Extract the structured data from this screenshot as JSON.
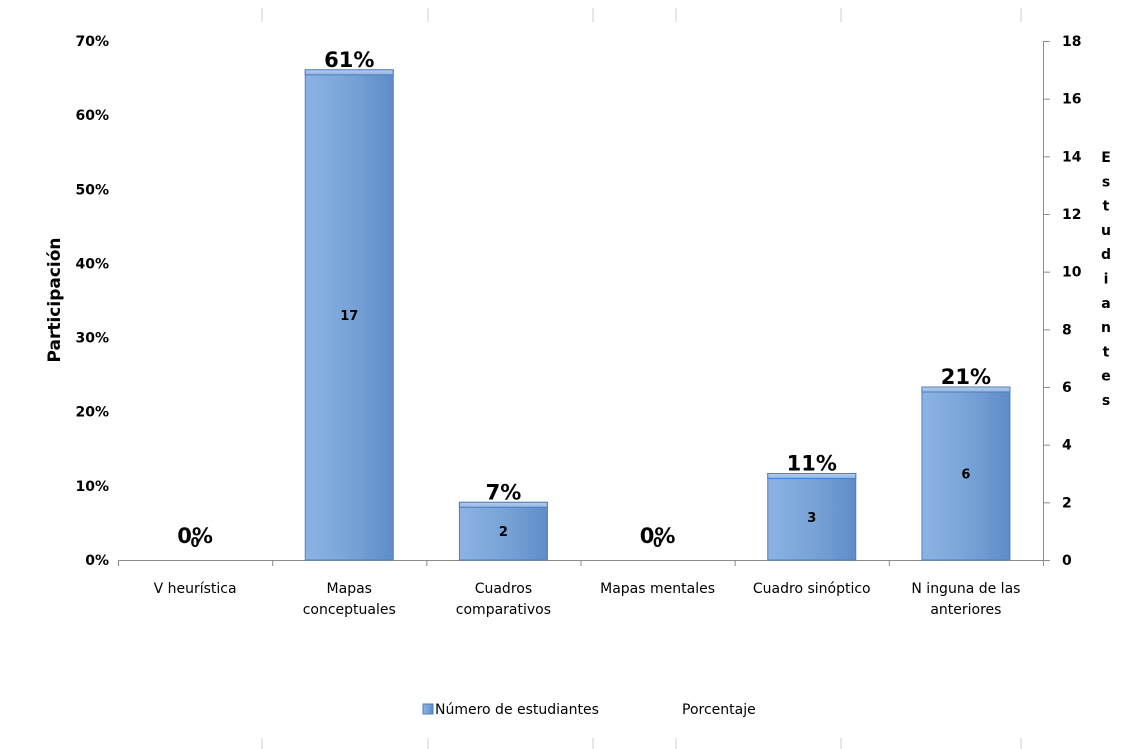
{
  "chart_data": {
    "type": "bar",
    "categories": [
      [
        "V heurística"
      ],
      [
        "Mapas",
        "conceptuales"
      ],
      [
        "Cuadros",
        "comparativos"
      ],
      [
        "Mapas mentales"
      ],
      [
        "Cuadro sinóptico"
      ],
      [
        "N inguna de las",
        "anteriores"
      ]
    ],
    "series": [
      {
        "name": "Número de estudiantes",
        "values": [
          0,
          17,
          2,
          0,
          3,
          6
        ],
        "axis": "right"
      },
      {
        "name": "Porcentaje",
        "values": [
          0,
          61,
          7,
          0,
          11,
          21
        ],
        "axis": "left"
      }
    ],
    "value_labels": [
      "0",
      "17",
      "2",
      "0",
      "3",
      "6"
    ],
    "percent_labels": [
      "0%",
      "61%",
      "7%",
      "0%",
      "11%",
      "21%"
    ],
    "ylabel": "Participación",
    "y2label": "Estudiantes",
    "ylim": [
      0,
      70
    ],
    "y2lim": [
      0,
      18
    ],
    "yticks": [
      "0%",
      "10%",
      "20%",
      "30%",
      "40%",
      "50%",
      "60%",
      "70%"
    ],
    "y2ticks": [
      "0",
      "2",
      "4",
      "6",
      "8",
      "10",
      "12",
      "14",
      "16",
      "18"
    ],
    "grid": false,
    "legend_position": "bottom",
    "bar_color": "#7aa5d8",
    "bar_edge_color": "#4f7fbf"
  }
}
